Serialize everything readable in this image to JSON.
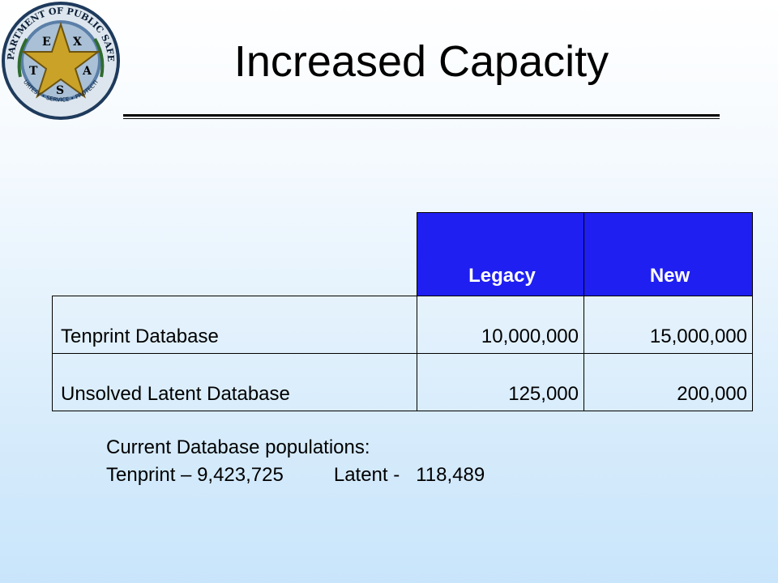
{
  "logo": {
    "ring_text_top": "DEPARTMENT OF PUBLIC SAFETY",
    "ring_text_bottom": "COURTESY • SERVICE • PROTECTION",
    "star_letters": [
      "T",
      "E",
      "X",
      "A",
      "S"
    ],
    "colors": {
      "ring": "#5a7fa8",
      "gold": "#c9a227",
      "rim": "#1e3a5c"
    }
  },
  "title": "Increased Capacity",
  "table": {
    "headers": [
      "",
      "Legacy",
      "New"
    ],
    "rows": [
      {
        "label": "Tenprint Database",
        "legacy": "10,000,000",
        "new": "15,000,000"
      },
      {
        "label": "Unsolved Latent Database",
        "legacy": "125,000",
        "new": "200,000"
      }
    ],
    "header_color": "#1f1ff2"
  },
  "note": {
    "line1": "Current Database populations:",
    "tenprint": "Tenprint – 9,423,725",
    "latent": "Latent -   118,489"
  }
}
